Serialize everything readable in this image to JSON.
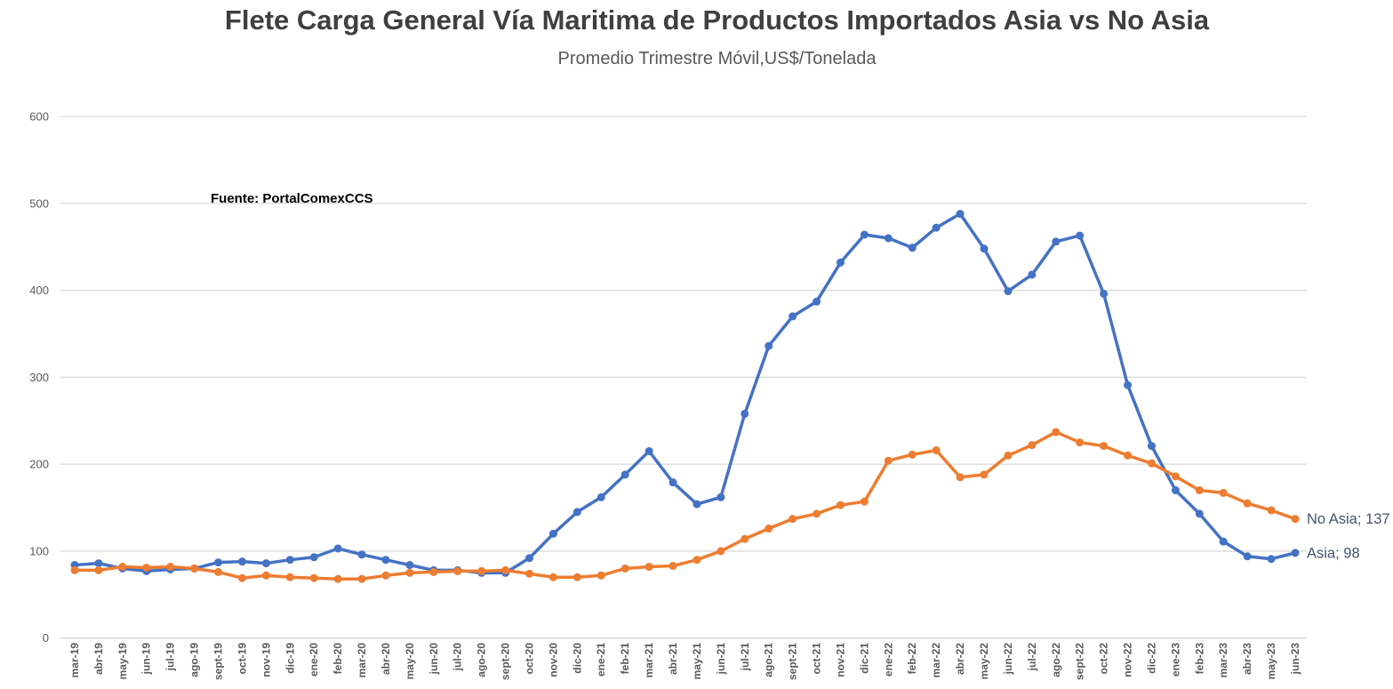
{
  "header": {
    "title": "Flete Carga General Vía Maritima de Productos Importados Asia vs No Asia",
    "subtitle": "Promedio Trimestre Móvil,US$/Tonelada"
  },
  "source_note": "Fuente: PortalComexCCS",
  "chart_data": {
    "type": "line",
    "title": "Flete Carga General Vía Maritima de Productos Importados Asia vs No Asia",
    "subtitle": "Promedio Trimestre Móvil,US$/Tonelada",
    "xlabel": "",
    "ylabel": "",
    "ylim": [
      0,
      600
    ],
    "ytick_step": 100,
    "yticks": [
      0,
      100,
      200,
      300,
      400,
      500,
      600
    ],
    "grid": "horizontal",
    "gridline_color": "#d9d9d9",
    "axis_label_color": "#595959",
    "data_label_color": "#44546a",
    "legend_position": "end-of-line-data-labels",
    "categories": [
      "mar-19",
      "abr-19",
      "may-19",
      "jun-19",
      "jul-19",
      "ago-19",
      "sept-19",
      "oct-19",
      "nov-19",
      "dic-19",
      "ene-20",
      "feb-20",
      "mar-20",
      "abr-20",
      "may-20",
      "jun-20",
      "jul-20",
      "ago-20",
      "sept-20",
      "oct-20",
      "nov-20",
      "dic-20",
      "ene-21",
      "feb-21",
      "mar-21",
      "abr-21",
      "may-21",
      "jun-21",
      "jul-21",
      "ago-21",
      "sept-21",
      "oct-21",
      "nov-21",
      "dic-21",
      "ene-22",
      "feb-22",
      "mar-22",
      "abr-22",
      "may-22",
      "jun-22",
      "jul-22",
      "ago-22",
      "sept-22",
      "oct-22",
      "nov-22",
      "dic-22",
      "ene-23",
      "feb-23",
      "mar-23",
      "abr-23",
      "may-23",
      "jun-23"
    ],
    "series": [
      {
        "name": "Asia",
        "color": "#4472c4",
        "end_label": "Asia; 98",
        "final_value": 98,
        "values": [
          84,
          86,
          80,
          77,
          79,
          80,
          87,
          88,
          86,
          90,
          93,
          103,
          96,
          90,
          84,
          78,
          78,
          75,
          75,
          92,
          120,
          145,
          162,
          188,
          215,
          179,
          154,
          162,
          258,
          336,
          370,
          387,
          432,
          464,
          460,
          449,
          472,
          488,
          448,
          399,
          418,
          456,
          463,
          396,
          291,
          221,
          170,
          143,
          111,
          94,
          91,
          98
        ]
      },
      {
        "name": "No Asia",
        "color": "#ed7d31",
        "end_label": "No Asia; 137",
        "final_value": 137,
        "values": [
          78,
          78,
          82,
          81,
          82,
          80,
          76,
          69,
          72,
          70,
          69,
          68,
          68,
          72,
          75,
          76,
          77,
          77,
          78,
          74,
          70,
          70,
          72,
          80,
          82,
          83,
          90,
          100,
          114,
          126,
          137,
          143,
          153,
          157,
          204,
          211,
          216,
          185,
          188,
          210,
          222,
          237,
          225,
          221,
          210,
          201,
          186,
          170,
          167,
          155,
          147,
          137
        ]
      }
    ]
  }
}
